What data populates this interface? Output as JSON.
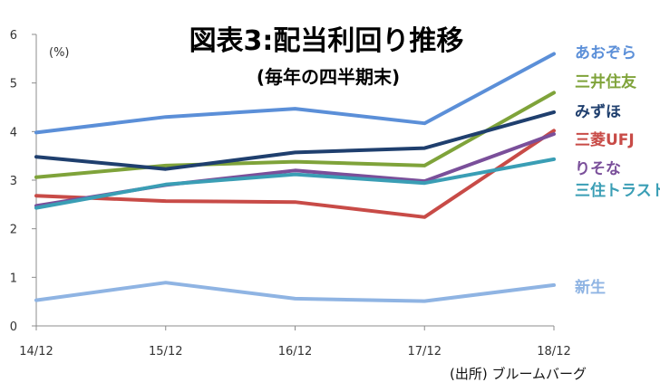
{
  "chart_data": {
    "type": "line",
    "title": "図表3:配当利回り推移",
    "subtitle": "(毎年の四半期末)",
    "unit_label": "(%)",
    "source": "(出所) ブルームバーグ",
    "categories": [
      "14/12",
      "15/12",
      "16/12",
      "17/12",
      "18/12"
    ],
    "ylim": [
      0,
      6
    ],
    "yticks": [
      "0",
      "1",
      "2",
      "3",
      "4",
      "5",
      "6"
    ],
    "grid": false,
    "legend": "right",
    "series": [
      {
        "name": "あおぞら",
        "color": "#5B8FD8",
        "values": [
          3.98,
          4.3,
          4.47,
          4.17,
          5.6
        ]
      },
      {
        "name": "三井住友",
        "color": "#7FA33A",
        "values": [
          3.06,
          3.3,
          3.38,
          3.3,
          4.8
        ]
      },
      {
        "name": "みずほ",
        "color": "#1F3F6E",
        "values": [
          3.48,
          3.23,
          3.57,
          3.66,
          4.4
        ]
      },
      {
        "name": "三菱UFJ",
        "color": "#C84B47",
        "values": [
          2.68,
          2.57,
          2.55,
          2.24,
          4.02
        ]
      },
      {
        "name": "りそな",
        "color": "#7A4F9A",
        "values": [
          2.47,
          2.9,
          3.2,
          2.98,
          3.95
        ]
      },
      {
        "name": "三住トラスト",
        "color": "#3A9EB5",
        "values": [
          2.43,
          2.91,
          3.12,
          2.94,
          3.43
        ]
      },
      {
        "name": "新生",
        "color": "#8FB4E3",
        "values": [
          0.53,
          0.89,
          0.56,
          0.51,
          0.84
        ]
      }
    ]
  }
}
